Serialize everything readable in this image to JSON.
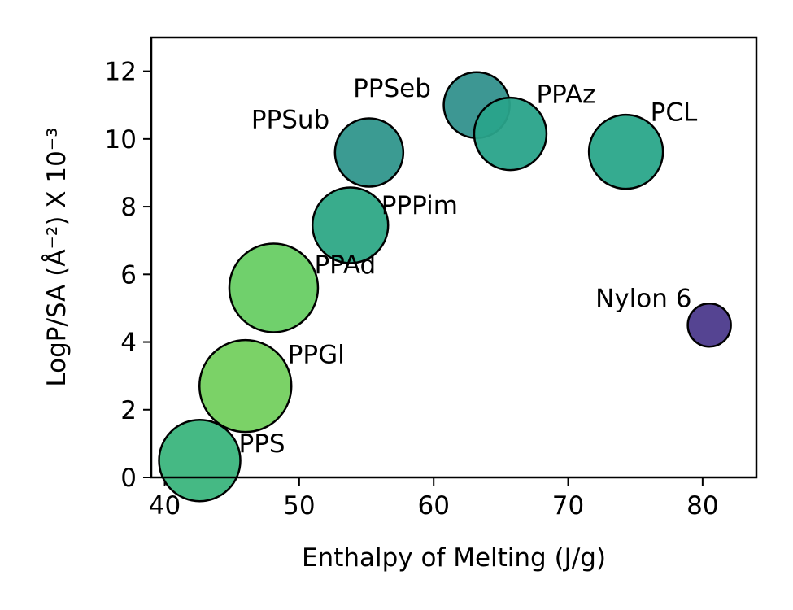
{
  "chart_data": {
    "type": "scatter",
    "xlabel": "Enthalpy of Melting (J/g)",
    "ylabel": "LogP/SA (Å⁻²)  X 10⁻³",
    "xlim": [
      39,
      84
    ],
    "ylim": [
      0,
      13
    ],
    "x_ticks": [
      "40",
      "50",
      "60",
      "70",
      "80"
    ],
    "y_ticks": [
      "0",
      "2",
      "4",
      "6",
      "8",
      "10",
      "12"
    ],
    "grid": false,
    "points": [
      {
        "label": "PPS",
        "x": 42.6,
        "y": 0.5,
        "size": 1.0,
        "color": "#3bb57d"
      },
      {
        "label": "PPGl",
        "x": 46.0,
        "y": 2.7,
        "size": 1.13,
        "color": "#74d05f"
      },
      {
        "label": "PPAd",
        "x": 48.1,
        "y": 5.6,
        "size": 1.09,
        "color": "#68cd64"
      },
      {
        "label": "PPPim",
        "x": 53.8,
        "y": 7.45,
        "size": 0.93,
        "color": "#2ea886"
      },
      {
        "label": "PPSub",
        "x": 55.2,
        "y": 9.6,
        "size": 0.84,
        "color": "#30968c"
      },
      {
        "label": "PPSeb",
        "x": 63.2,
        "y": 11.0,
        "size": 0.81,
        "color": "#33918d"
      },
      {
        "label": "PPAz",
        "x": 65.7,
        "y": 10.15,
        "size": 0.89,
        "color": "#29a38a"
      },
      {
        "label": "PCL",
        "x": 74.3,
        "y": 9.62,
        "size": 0.91,
        "color": "#2aa68a"
      },
      {
        "label": "Nylon 6",
        "x": 80.5,
        "y": 4.5,
        "size": 0.53,
        "color": "#4c3a8c"
      }
    ]
  }
}
